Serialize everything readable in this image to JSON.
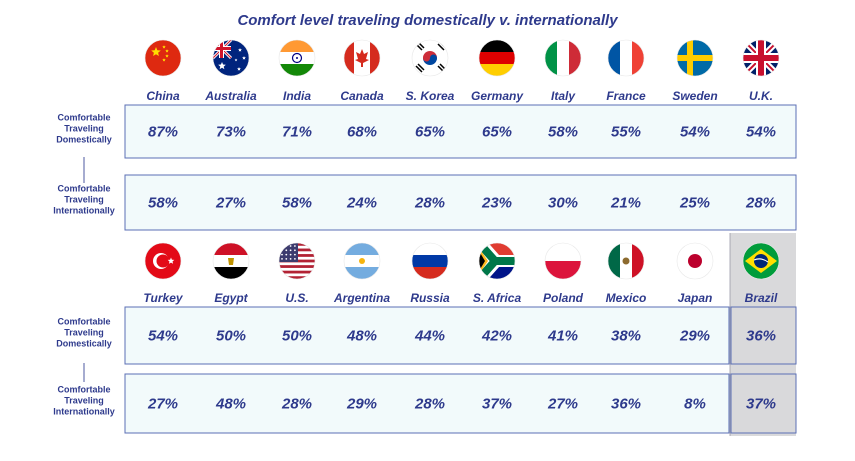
{
  "title": "Comfort level traveling domestically v. internationally",
  "colors": {
    "text": "#2E3A8C",
    "cell_fill": "#F2FAFB",
    "cell_border": "#5B6FB5",
    "highlight": "#D9D9DB"
  },
  "chart_data": {
    "type": "table",
    "title": "Comfort level traveling domestically v. internationally",
    "row_labels": [
      [
        "Comfortable",
        "Traveling",
        "Domestically"
      ],
      [
        "Comfortable",
        "Traveling",
        "Internationally"
      ]
    ],
    "panels": [
      {
        "countries": [
          "China",
          "Australia",
          "India",
          "Canada",
          "S. Korea",
          "Germany",
          "Italy",
          "France",
          "Sweden",
          "U.K."
        ],
        "flags": [
          "china-flag-icon",
          "australia-flag-icon",
          "india-flag-icon",
          "canada-flag-icon",
          "south-korea-flag-icon",
          "germany-flag-icon",
          "italy-flag-icon",
          "france-flag-icon",
          "sweden-flag-icon",
          "uk-flag-icon"
        ],
        "domestic": [
          "87%",
          "73%",
          "71%",
          "68%",
          "65%",
          "65%",
          "58%",
          "55%",
          "54%",
          "54%"
        ],
        "international": [
          "58%",
          "27%",
          "58%",
          "24%",
          "28%",
          "23%",
          "30%",
          "21%",
          "25%",
          "28%"
        ]
      },
      {
        "countries": [
          "Turkey",
          "Egypt",
          "U.S.",
          "Argentina",
          "Russia",
          "S. Africa",
          "Poland",
          "Mexico",
          "Japan",
          "Brazil"
        ],
        "flags": [
          "turkey-flag-icon",
          "egypt-flag-icon",
          "us-flag-icon",
          "argentina-flag-icon",
          "russia-flag-icon",
          "south-africa-flag-icon",
          "poland-flag-icon",
          "mexico-flag-icon",
          "japan-flag-icon",
          "brazil-flag-icon"
        ],
        "domestic": [
          "54%",
          "50%",
          "50%",
          "48%",
          "44%",
          "42%",
          "41%",
          "38%",
          "29%",
          "36%"
        ],
        "international": [
          "27%",
          "48%",
          "28%",
          "29%",
          "28%",
          "37%",
          "27%",
          "36%",
          "8%",
          "37%"
        ],
        "highlighted": "Brazil"
      }
    ]
  }
}
